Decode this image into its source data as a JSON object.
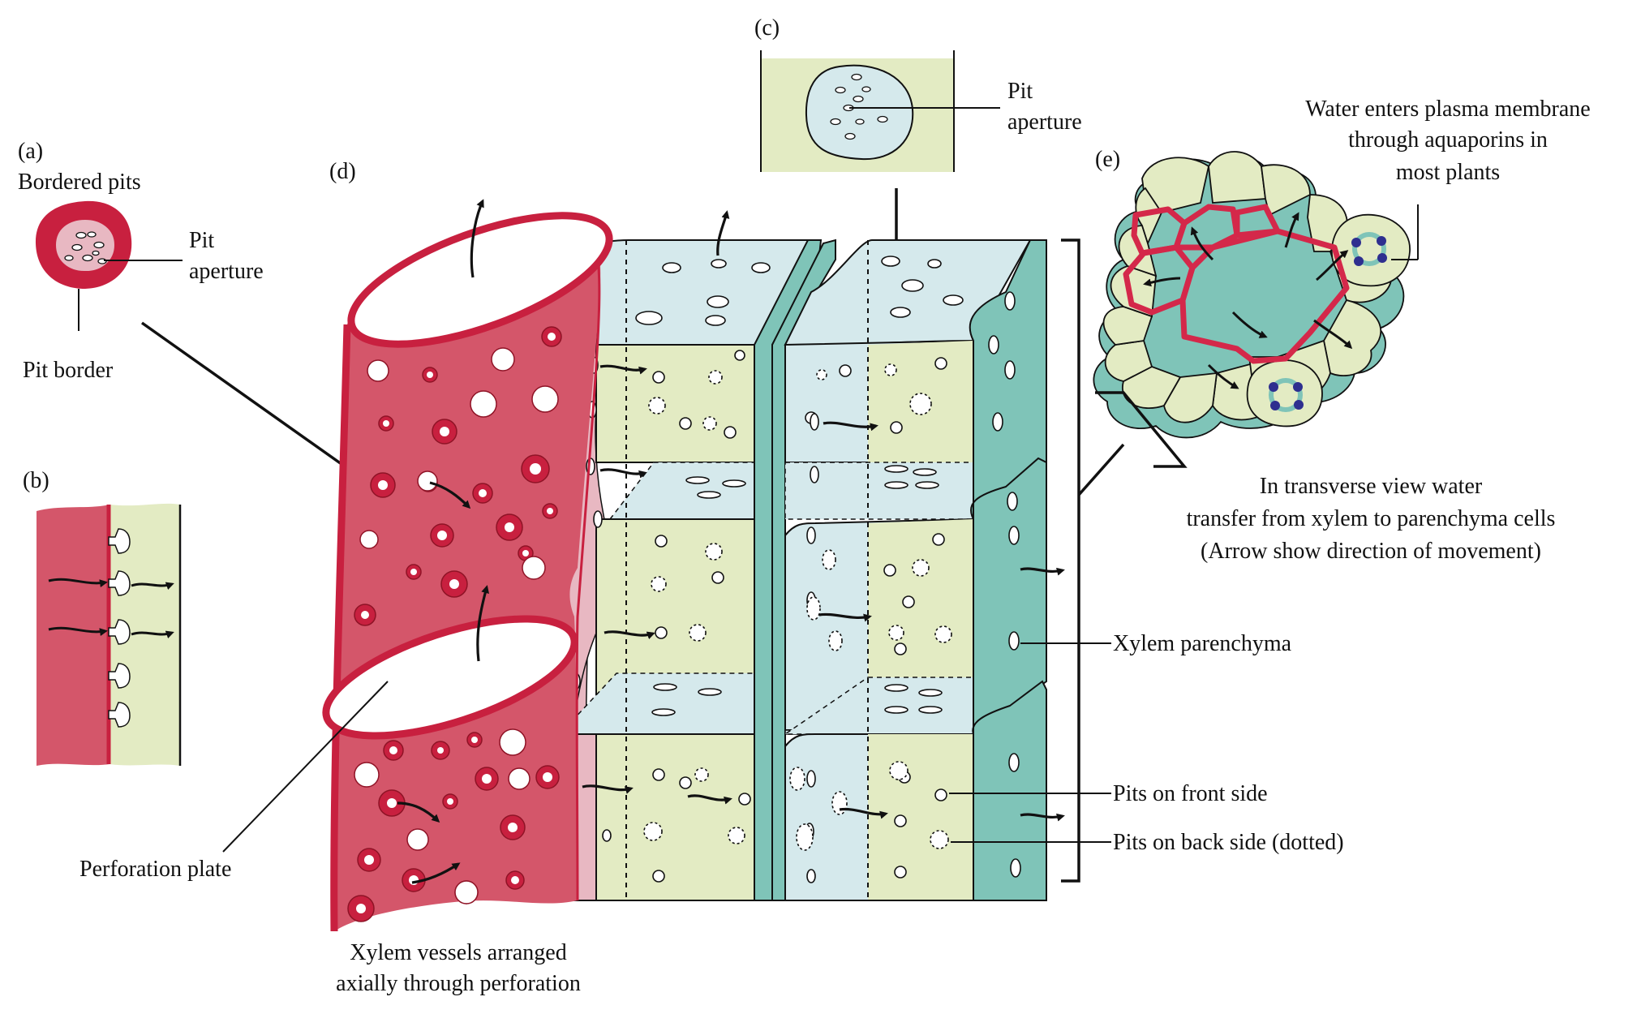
{
  "panels": {
    "a": {
      "tag": "(a)",
      "title": "Bordered pits",
      "aperture_line1": "Pit",
      "aperture_line2": "aperture",
      "border": "Pit border"
    },
    "b": {
      "tag": "(b)"
    },
    "c": {
      "tag": "(c)",
      "aperture_line1": "Pit",
      "aperture_line2": "aperture"
    },
    "d": {
      "tag": "(d)"
    },
    "e": {
      "tag": "(e)"
    }
  },
  "labels": {
    "perforation_plate": "Perforation plate",
    "vessels_line1": "Xylem vessels arranged",
    "vessels_line2": "axially through perforation",
    "aquaporin_line1": "Water enters plasma membrane",
    "aquaporin_line2": "through aquaporins in",
    "aquaporin_line3": "most plants",
    "transverse_line1": "In transverse view water",
    "transverse_line2": "transfer from xylem to parenchyma cells",
    "transverse_line3": "(Arrow show direction of movement)",
    "xylem_parenchyma": "Xylem parenchyma",
    "pits_front": "Pits on front side",
    "pits_back": "Pits on back side (dotted)"
  },
  "colors": {
    "vessel": "#d4566a",
    "vessel_dark": "#c8203f",
    "pink_light": "#e8b8c2",
    "parenchyma_green": "#e3ebc3",
    "parenchyma_blue": "#d5e9ec",
    "teal": "#7fc4b8",
    "aquaporin": "#2e2f8f"
  }
}
